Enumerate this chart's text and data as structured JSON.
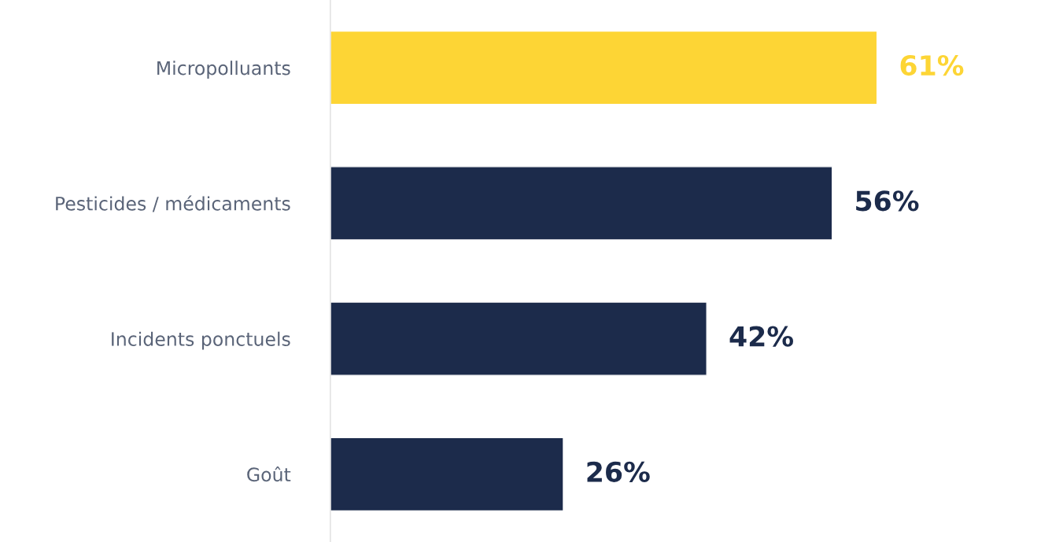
{
  "chart_data": {
    "type": "bar",
    "orientation": "horizontal",
    "categories": [
      "Micropolluants",
      "Pesticides / médicaments",
      "Incidents ponctuels",
      "Goût"
    ],
    "values": [
      61,
      56,
      42,
      26
    ],
    "colors": [
      "#fdd535",
      "#1c2b4b",
      "#1c2b4b",
      "#1c2b4b"
    ],
    "value_labels": [
      "61%",
      "56%",
      "42%",
      "26%"
    ],
    "tick_labels": "y",
    "grid": false,
    "legend": false
  }
}
